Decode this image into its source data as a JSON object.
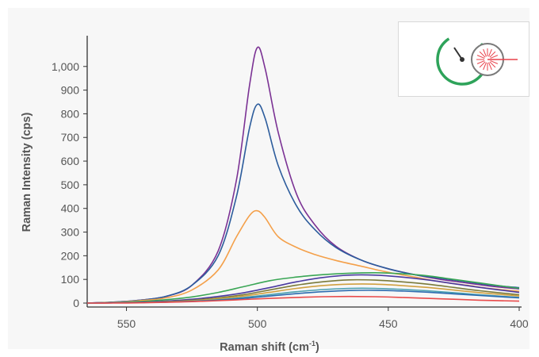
{
  "chart_data": {
    "type": "line",
    "title": "",
    "xlabel": "Raman shift (cm",
    "xlabel_sup": "-1",
    "xlabel_close": ")",
    "ylabel": "Raman Intensity (cps)",
    "xlim": [
      565,
      400
    ],
    "ylim": [
      -10,
      1130
    ],
    "x_reversed": true,
    "grid": false,
    "legend": "none",
    "x_ticks": [
      550,
      500,
      450,
      400
    ],
    "x_tick_labels": [
      "550",
      "500",
      "450",
      "400"
    ],
    "y_ticks": [
      0,
      100,
      200,
      300,
      400,
      500,
      600,
      700,
      800,
      900,
      1000
    ],
    "y_tick_labels": [
      "0",
      "100",
      "200",
      "300",
      "400",
      "500",
      "600",
      "700",
      "800",
      "900",
      "1,000"
    ],
    "series": [
      {
        "color": "#7b3294",
        "x": [
          565,
          555,
          545,
          535,
          525,
          515,
          508,
          503,
          500,
          497,
          492,
          485,
          478,
          470,
          460,
          450,
          440,
          430,
          420,
          410,
          400
        ],
        "y": [
          0,
          4,
          12,
          28,
          75,
          220,
          520,
          920,
          1080,
          990,
          720,
          460,
          330,
          240,
          180,
          145,
          120,
          100,
          85,
          70,
          60
        ]
      },
      {
        "color": "#2c5c9c",
        "x": [
          565,
          555,
          545,
          535,
          525,
          515,
          508,
          503,
          500,
          497,
          492,
          485,
          478,
          470,
          460,
          450,
          440,
          430,
          420,
          410,
          400
        ],
        "y": [
          0,
          4,
          12,
          28,
          75,
          200,
          450,
          740,
          840,
          780,
          580,
          410,
          310,
          235,
          180,
          145,
          120,
          105,
          90,
          75,
          65
        ]
      },
      {
        "color": "#f4a04a",
        "x": [
          565,
          555,
          545,
          535,
          525,
          515,
          508,
          503,
          500,
          497,
          492,
          485,
          478,
          470,
          460,
          450,
          440,
          430,
          420,
          410,
          400
        ],
        "y": [
          0,
          3,
          10,
          22,
          55,
          140,
          280,
          370,
          390,
          360,
          280,
          235,
          205,
          180,
          155,
          130,
          110,
          90,
          75,
          60,
          50
        ]
      },
      {
        "color": "#3aa655",
        "x": [
          565,
          555,
          545,
          535,
          525,
          515,
          505,
          495,
          485,
          475,
          465,
          455,
          445,
          435,
          425,
          415,
          400
        ],
        "y": [
          0,
          2,
          6,
          14,
          26,
          45,
          70,
          95,
          110,
          120,
          126,
          128,
          124,
          115,
          100,
          85,
          62
        ]
      },
      {
        "color": "#4a3aa0",
        "x": [
          565,
          555,
          545,
          535,
          525,
          515,
          505,
          495,
          485,
          475,
          465,
          455,
          445,
          435,
          425,
          415,
          400
        ],
        "y": [
          0,
          1,
          3,
          8,
          16,
          28,
          44,
          66,
          90,
          108,
          118,
          118,
          110,
          98,
          82,
          66,
          45
        ]
      },
      {
        "color": "#7a7a3a",
        "x": [
          565,
          555,
          545,
          535,
          525,
          515,
          505,
          495,
          485,
          475,
          465,
          455,
          445,
          435,
          425,
          415,
          400
        ],
        "y": [
          0,
          1,
          2,
          6,
          12,
          22,
          36,
          56,
          76,
          90,
          98,
          97,
          90,
          80,
          66,
          52,
          35
        ]
      },
      {
        "color": "#d0a040",
        "x": [
          565,
          555,
          545,
          535,
          525,
          515,
          505,
          495,
          485,
          475,
          465,
          455,
          445,
          435,
          425,
          415,
          400
        ],
        "y": [
          0,
          1,
          2,
          5,
          10,
          18,
          30,
          46,
          62,
          74,
          80,
          80,
          74,
          66,
          55,
          44,
          30
        ]
      },
      {
        "color": "#4aa0b0",
        "x": [
          565,
          555,
          545,
          535,
          525,
          515,
          505,
          495,
          485,
          475,
          465,
          455,
          445,
          435,
          425,
          415,
          400
        ],
        "y": [
          0,
          1,
          2,
          4,
          8,
          14,
          24,
          36,
          48,
          57,
          62,
          62,
          58,
          52,
          44,
          35,
          24
        ]
      },
      {
        "color": "#2c6cb0",
        "x": [
          565,
          555,
          545,
          535,
          525,
          515,
          505,
          495,
          485,
          475,
          465,
          455,
          445,
          435,
          425,
          415,
          400
        ],
        "y": [
          0,
          1,
          2,
          4,
          7,
          12,
          20,
          30,
          40,
          48,
          53,
          54,
          51,
          46,
          39,
          32,
          22
        ]
      },
      {
        "color": "#e84a4a",
        "x": [
          565,
          555,
          545,
          535,
          525,
          515,
          505,
          495,
          485,
          475,
          465,
          455,
          445,
          435,
          425,
          415,
          400
        ],
        "y": [
          0,
          0,
          1,
          3,
          6,
          10,
          15,
          20,
          24,
          27,
          28,
          27,
          24,
          20,
          16,
          12,
          8
        ]
      }
    ]
  },
  "legend_icon": {
    "name": "speed-laser-icon",
    "dial_color": "#2ea35a",
    "laser_color": "#e8404a",
    "ring_color": "#7a7a7a"
  }
}
